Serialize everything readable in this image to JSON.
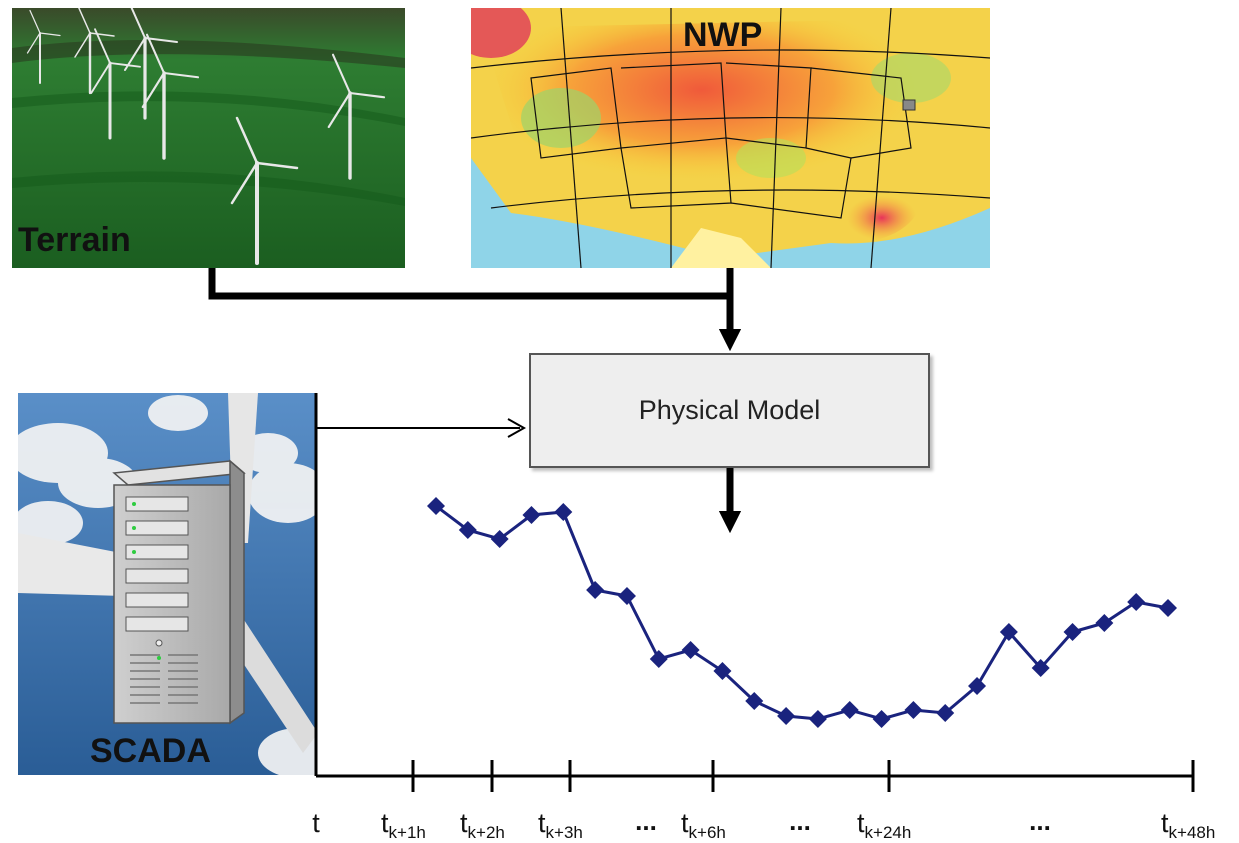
{
  "panels": {
    "terrain": {
      "label": "Terrain"
    },
    "nwp": {
      "label": "NWP"
    },
    "scada": {
      "label": "SCADA"
    }
  },
  "model": {
    "label": "Physical Model"
  },
  "timeline": {
    "ticks": [
      {
        "base": "t",
        "sub": ""
      },
      {
        "base": "t",
        "sub": "k+1h"
      },
      {
        "base": "t",
        "sub": "k+2h"
      },
      {
        "base": "t",
        "sub": "k+3h"
      },
      {
        "base": "t",
        "sub": "k+6h"
      },
      {
        "base": "t",
        "sub": "k+24h"
      },
      {
        "base": "t",
        "sub": "k+48h"
      }
    ],
    "ellipsis": "..."
  },
  "forecast": {
    "values": [
      0.88,
      0.8,
      0.77,
      0.85,
      0.86,
      0.6,
      0.58,
      0.37,
      0.4,
      0.33,
      0.23,
      0.18,
      0.17,
      0.2,
      0.17,
      0.2,
      0.19,
      0.28,
      0.46,
      0.34,
      0.46,
      0.49,
      0.56,
      0.54
    ]
  },
  "colors": {
    "series": "#1a237e",
    "connector": "#000000",
    "terrain_ground": "#1f7a2e",
    "sky": "#2e6ea8"
  }
}
